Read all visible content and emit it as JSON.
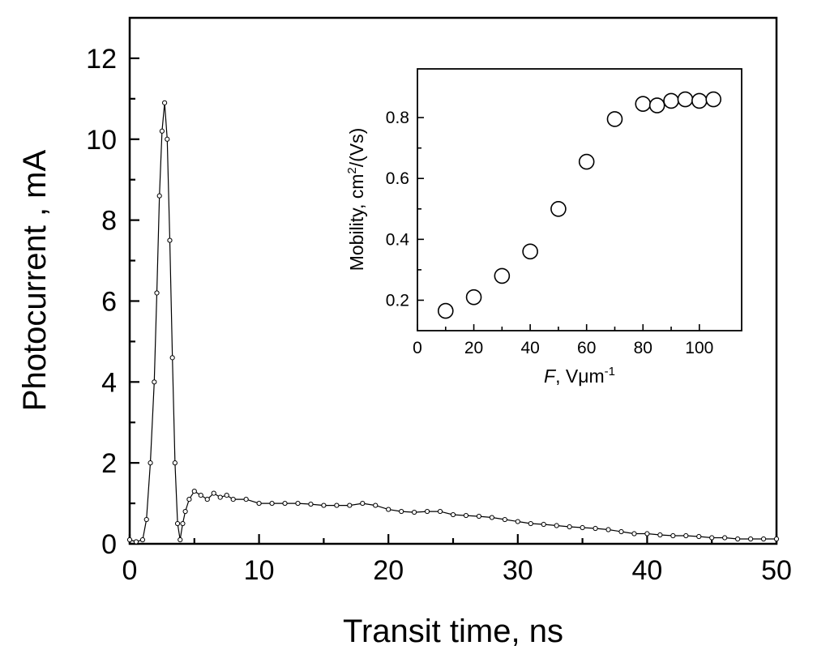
{
  "chart_data": [
    {
      "type": "line",
      "title": "",
      "xlabel": "Transit time, ns",
      "ylabel": "Photocurrent , mA",
      "xlim": [
        0,
        50
      ],
      "ylim": [
        0,
        13
      ],
      "xticks": [
        "0",
        "10",
        "20",
        "30",
        "40",
        "50"
      ],
      "yticks": [
        "0",
        "2",
        "4",
        "6",
        "8",
        "10",
        "12"
      ],
      "grid": false,
      "marker": "open-circle",
      "series": [
        {
          "name": "",
          "x": [
            0,
            0.5,
            1.0,
            1.3,
            1.6,
            1.9,
            2.1,
            2.3,
            2.5,
            2.7,
            2.9,
            3.1,
            3.3,
            3.5,
            3.7,
            3.9,
            4.1,
            4.3,
            4.6,
            5.0,
            5.5,
            6.0,
            6.5,
            7.0,
            7.5,
            8.0,
            9.0,
            10,
            11,
            12,
            13,
            14,
            15,
            16,
            17,
            18,
            19,
            20,
            21,
            22,
            23,
            24,
            25,
            26,
            27,
            28,
            29,
            30,
            31,
            32,
            33,
            34,
            35,
            36,
            37,
            38,
            39,
            40,
            41,
            42,
            43,
            44,
            45,
            46,
            47,
            48,
            49,
            50
          ],
          "y": [
            0.1,
            0.05,
            0.1,
            0.6,
            2.0,
            4.0,
            6.2,
            8.6,
            10.2,
            10.9,
            10.0,
            7.5,
            4.6,
            2.0,
            0.5,
            0.1,
            0.5,
            0.8,
            1.1,
            1.3,
            1.2,
            1.1,
            1.25,
            1.15,
            1.2,
            1.1,
            1.1,
            1.0,
            1.0,
            1.0,
            1.0,
            0.98,
            0.95,
            0.95,
            0.95,
            1.0,
            0.95,
            0.85,
            0.8,
            0.78,
            0.8,
            0.8,
            0.72,
            0.7,
            0.68,
            0.65,
            0.6,
            0.55,
            0.5,
            0.48,
            0.45,
            0.42,
            0.4,
            0.38,
            0.35,
            0.3,
            0.25,
            0.25,
            0.22,
            0.2,
            0.2,
            0.18,
            0.15,
            0.15,
            0.12,
            0.12,
            0.12,
            0.12
          ]
        }
      ]
    },
    {
      "type": "scatter",
      "title": "",
      "xlabel": "F, Vμm⁻¹",
      "ylabel": "Mobility, cm²/(Vs)",
      "xlim": [
        0,
        115
      ],
      "ylim": [
        0.1,
        0.96
      ],
      "xticks": [
        "0",
        "20",
        "40",
        "60",
        "80",
        "100"
      ],
      "yticks": [
        "0.2",
        "0.4",
        "0.6",
        "0.8"
      ],
      "grid": false,
      "marker": "open-circle",
      "series": [
        {
          "name": "",
          "x": [
            10,
            20,
            30,
            40,
            50,
            60,
            70,
            80,
            85,
            90,
            95,
            100,
            105
          ],
          "y": [
            0.165,
            0.21,
            0.28,
            0.36,
            0.5,
            0.655,
            0.795,
            0.845,
            0.84,
            0.855,
            0.86,
            0.855,
            0.86
          ]
        }
      ]
    }
  ]
}
